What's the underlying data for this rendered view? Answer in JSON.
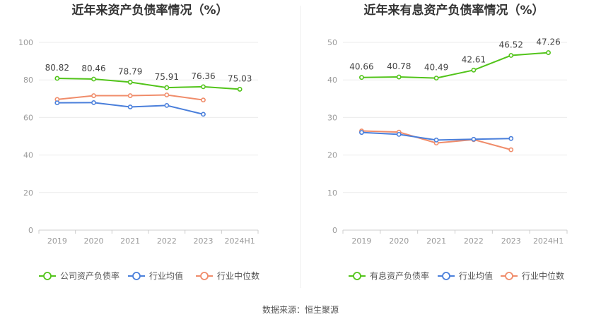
{
  "source": "数据来源：恒生聚源",
  "chart_data": [
    {
      "type": "line",
      "title": "近年来资产负债率情况（%）",
      "categories": [
        "2019",
        "2020",
        "2021",
        "2022",
        "2023",
        "2024H1"
      ],
      "ylim": [
        0,
        100
      ],
      "yticks": [
        "0",
        "20",
        "40",
        "60",
        "80",
        "100"
      ],
      "grid": true,
      "legend_position": "bottom",
      "colors": [
        "#52c41a",
        "#4a7fdb",
        "#f08c6a"
      ],
      "series": [
        {
          "name": "公司资产负债率",
          "values": [
            80.82,
            80.46,
            78.79,
            75.91,
            76.36,
            75.03
          ],
          "labels": [
            "80.82",
            "80.46",
            "78.79",
            "75.91",
            "76.36",
            "75.03"
          ]
        },
        {
          "name": "行业均值",
          "values": [
            67.8,
            67.9,
            65.6,
            66.4,
            61.7,
            null
          ]
        },
        {
          "name": "行业中位数",
          "values": [
            69.6,
            71.6,
            71.6,
            72.0,
            69.3,
            null
          ]
        }
      ]
    },
    {
      "type": "line",
      "title": "近年来有息资产负债率情况（%）",
      "categories": [
        "2019",
        "2020",
        "2021",
        "2022",
        "2023",
        "2024H1"
      ],
      "ylim": [
        0,
        50
      ],
      "yticks": [
        "0",
        "10",
        "20",
        "30",
        "40",
        "50"
      ],
      "grid": true,
      "legend_position": "bottom",
      "colors": [
        "#52c41a",
        "#4a7fdb",
        "#f08c6a"
      ],
      "series": [
        {
          "name": "有息资产负债率",
          "values": [
            40.66,
            40.78,
            40.49,
            42.61,
            46.52,
            47.26
          ],
          "labels": [
            "40.66",
            "40.78",
            "40.49",
            "42.61",
            "46.52",
            "47.26"
          ]
        },
        {
          "name": "行业均值",
          "values": [
            26.0,
            25.5,
            24.0,
            24.2,
            24.4,
            null
          ]
        },
        {
          "name": "行业中位数",
          "values": [
            26.4,
            26.1,
            23.2,
            24.1,
            21.4,
            null
          ]
        }
      ]
    }
  ]
}
